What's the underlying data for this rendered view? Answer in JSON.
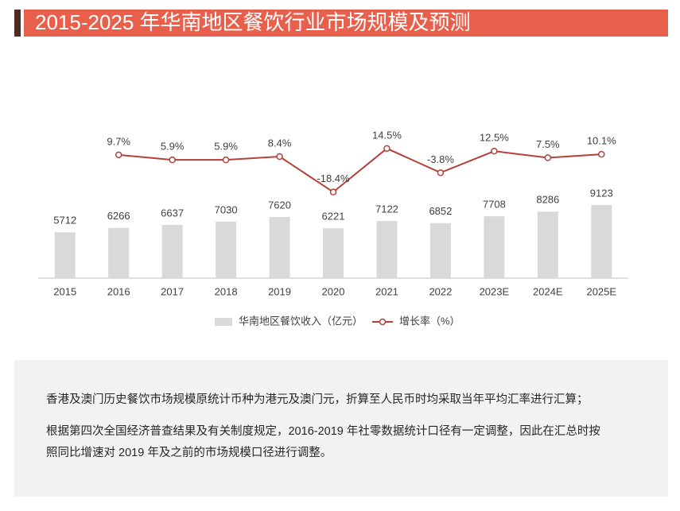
{
  "chart_data": {
    "type": "bar-line",
    "title": "2015-2025 年华南地区餐饮行业市场规模及预测",
    "categories": [
      "2015",
      "2016",
      "2017",
      "2018",
      "2019",
      "2020",
      "2021",
      "2022",
      "2023E",
      "2024E",
      "2025E"
    ],
    "ylim": [
      0,
      20000
    ],
    "y2lim": [
      -30,
      30
    ],
    "series": [
      {
        "name": "华南地区餐饮收入（亿元）",
        "type": "bar",
        "color": "#d9d9d9",
        "values": [
          5712,
          6266,
          6637,
          7030,
          7620,
          6221,
          7122,
          6852,
          7708,
          8286,
          9123
        ]
      },
      {
        "name": "增长率（%）",
        "type": "line",
        "axis": "y2",
        "color": "#b5403a",
        "values": [
          null,
          9.7,
          5.9,
          5.9,
          8.4,
          -18.4,
          14.5,
          -3.8,
          12.5,
          7.5,
          10.1
        ],
        "value_labels": [
          null,
          "9.7%",
          "5.9%",
          "5.9%",
          "8.4%",
          "-18.4%",
          "14.5%",
          "-3.8%",
          "12.5%",
          "7.5%",
          "10.1%"
        ]
      }
    ],
    "notes": [
      "香港及澳门历史餐饮市场规模原统计币种为港元及澳门元，折算至人民币时均采取当年平均汇率进行汇算；",
      "根据第四次全国经济普查结果及有关制度规定，2016-2019 年社零数据统计口径有一定调整，因此在汇总时按",
      "照同比增速对 2019 年及之前的市场规模口径进行调整。"
    ]
  }
}
